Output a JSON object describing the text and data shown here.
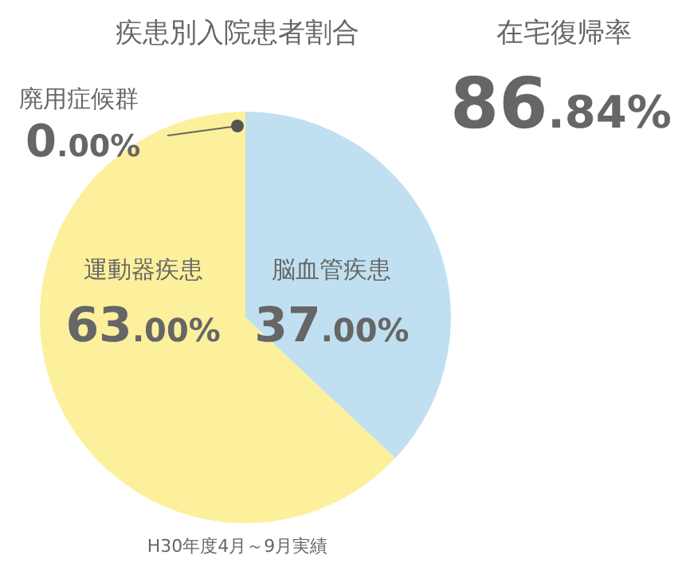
{
  "chart_data": [
    {
      "type": "pie",
      "title": "疾患別入院患者割合",
      "categories": [
        "脳血管疾患",
        "運動器疾患",
        "廃用症候群"
      ],
      "values": [
        37,
        63,
        0
      ],
      "colors": [
        "#c0e0f1",
        "#fdf09c",
        "#555555"
      ],
      "value_labels": [
        "37.00%",
        "63.00%",
        "0.00%"
      ],
      "annotations": [
        "H30年度4月～9月実績"
      ]
    },
    {
      "type": "other",
      "title": "在宅復帰率",
      "annotations": [
        "86.84%"
      ]
    }
  ]
}
